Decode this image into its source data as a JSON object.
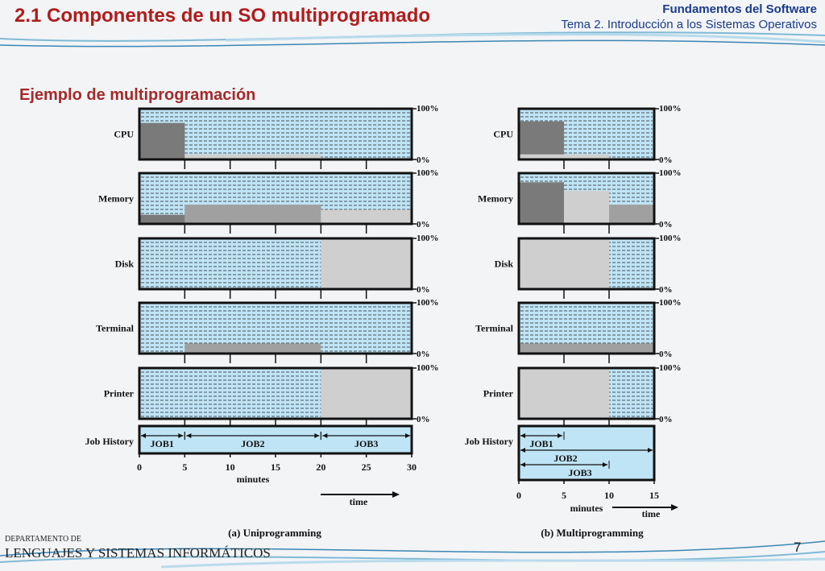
{
  "header": {
    "title": "2.1 Componentes de un SO multiprogramado",
    "course": "Fundamentos del Software",
    "topic": "Tema 2. Introducción a los Sistemas Operativos"
  },
  "subtitle": "Ejemplo de multiprogramación",
  "footer": {
    "dept_small": "DEPARTAMENTO DE",
    "dept_big": "LENGUAJES Y SISTEMAS INFORMÁTICOS",
    "page_number": "7"
  },
  "colors": {
    "panel_fill": "#bfe4f5",
    "dark_gray": "#7a7a7a",
    "mid_gray": "#a0a0a0",
    "light_gray": "#cfcfcf",
    "title_red": "#b01c1c",
    "header_blue": "#1b3a8c"
  },
  "labels": {
    "resources": [
      "CPU",
      "Memory",
      "Disk",
      "Terminal",
      "Printer"
    ],
    "job_history": "Job History",
    "pct_top": "100%",
    "pct_bottom": "0%",
    "minutes": "minutes",
    "time": "time"
  },
  "diagrams": [
    {
      "caption": "(a) Uniprogramming",
      "ticks": [
        "0",
        "5",
        "10",
        "15",
        "20",
        "25",
        "30"
      ],
      "x_max": 30,
      "tick_step": 5,
      "utilization": {
        "CPU": [
          {
            "from": 0,
            "to": 5,
            "level": 0.72,
            "shade": "dark"
          },
          {
            "from": 5,
            "to": 20,
            "level": 0.1,
            "shade": "light"
          }
        ],
        "Memory": [
          {
            "from": 0,
            "to": 5,
            "level": 0.18,
            "shade": "dark"
          },
          {
            "from": 5,
            "to": 20,
            "level": 0.38,
            "shade": "mid"
          },
          {
            "from": 20,
            "to": 30,
            "level": 0.28,
            "shade": "light"
          }
        ],
        "Disk": [
          {
            "from": 20,
            "to": 30,
            "level": 1.0,
            "shade": "light"
          }
        ],
        "Terminal": [
          {
            "from": 5,
            "to": 20,
            "level": 0.2,
            "shade": "mid"
          }
        ],
        "Printer": [
          {
            "from": 20,
            "to": 30,
            "level": 1.0,
            "shade": "light"
          }
        ]
      },
      "jobs": [
        {
          "name": "JOB1",
          "start": 0,
          "end": 5,
          "row": 0
        },
        {
          "name": "JOB2",
          "start": 5,
          "end": 20,
          "row": 0
        },
        {
          "name": "JOB3",
          "start": 20,
          "end": 30,
          "row": 0
        }
      ]
    },
    {
      "caption": "(b) Multiprogramming",
      "ticks": [
        "0",
        "5",
        "10",
        "15"
      ],
      "x_max": 15,
      "tick_step": 5,
      "utilization": {
        "CPU": [
          {
            "from": 0,
            "to": 5,
            "level": 0.75,
            "shade": "dark"
          },
          {
            "from": 0,
            "to": 10,
            "level": 0.1,
            "shade": "light"
          }
        ],
        "Memory": [
          {
            "from": 0,
            "to": 15,
            "level": 0.38,
            "shade": "mid"
          },
          {
            "from": 0,
            "to": 10,
            "level": 0.65,
            "shade": "light"
          },
          {
            "from": 0,
            "to": 5,
            "level": 0.82,
            "shade": "dark"
          }
        ],
        "Disk": [
          {
            "from": 0,
            "to": 10,
            "level": 1.0,
            "shade": "light"
          }
        ],
        "Terminal": [
          {
            "from": 0,
            "to": 15,
            "level": 0.2,
            "shade": "mid"
          }
        ],
        "Printer": [
          {
            "from": 0,
            "to": 10,
            "level": 1.0,
            "shade": "light"
          }
        ]
      },
      "jobs": [
        {
          "name": "JOB1",
          "start": 0,
          "end": 5,
          "row": 0
        },
        {
          "name": "JOB2",
          "start": 0,
          "end": 15,
          "row": 1
        },
        {
          "name": "JOB3",
          "start": 0,
          "end": 10,
          "row": 2
        }
      ]
    }
  ]
}
